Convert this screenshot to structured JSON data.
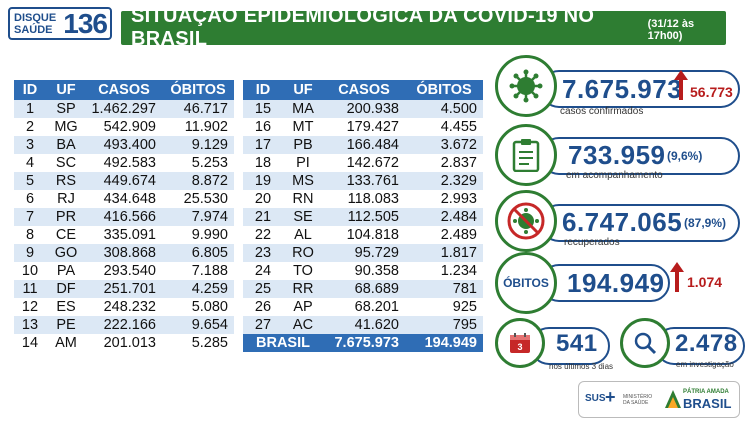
{
  "logo": {
    "line1": "DISQUE",
    "line2": "SAÚDE",
    "number": "136"
  },
  "title": "SITUAÇÃO EPIDEMIOLÓGICA DA COVID-19 NO BRASIL",
  "date": "(31/12 às 17h00)",
  "table_headers": [
    "ID",
    "UF",
    "CASOS",
    "ÓBITOS"
  ],
  "table_left": [
    {
      "id": "1",
      "uf": "SP",
      "casos": "1.462.297",
      "obitos": "46.717"
    },
    {
      "id": "2",
      "uf": "MG",
      "casos": "542.909",
      "obitos": "11.902"
    },
    {
      "id": "3",
      "uf": "BA",
      "casos": "493.400",
      "obitos": "9.129"
    },
    {
      "id": "4",
      "uf": "SC",
      "casos": "492.583",
      "obitos": "5.253"
    },
    {
      "id": "5",
      "uf": "RS",
      "casos": "449.674",
      "obitos": "8.872"
    },
    {
      "id": "6",
      "uf": "RJ",
      "casos": "434.648",
      "obitos": "25.530"
    },
    {
      "id": "7",
      "uf": "PR",
      "casos": "416.566",
      "obitos": "7.974"
    },
    {
      "id": "8",
      "uf": "CE",
      "casos": "335.091",
      "obitos": "9.990"
    },
    {
      "id": "9",
      "uf": "GO",
      "casos": "308.868",
      "obitos": "6.805"
    },
    {
      "id": "10",
      "uf": "PA",
      "casos": "293.540",
      "obitos": "7.188"
    },
    {
      "id": "11",
      "uf": "DF",
      "casos": "251.701",
      "obitos": "4.259"
    },
    {
      "id": "12",
      "uf": "ES",
      "casos": "248.232",
      "obitos": "5.080"
    },
    {
      "id": "13",
      "uf": "PE",
      "casos": "222.166",
      "obitos": "9.654"
    },
    {
      "id": "14",
      "uf": "AM",
      "casos": "201.013",
      "obitos": "5.285"
    }
  ],
  "table_right": [
    {
      "id": "15",
      "uf": "MA",
      "casos": "200.938",
      "obitos": "4.500"
    },
    {
      "id": "16",
      "uf": "MT",
      "casos": "179.427",
      "obitos": "4.455"
    },
    {
      "id": "17",
      "uf": "PB",
      "casos": "166.484",
      "obitos": "3.672"
    },
    {
      "id": "18",
      "uf": "PI",
      "casos": "142.672",
      "obitos": "2.837"
    },
    {
      "id": "19",
      "uf": "MS",
      "casos": "133.761",
      "obitos": "2.329"
    },
    {
      "id": "20",
      "uf": "RN",
      "casos": "118.083",
      "obitos": "2.993"
    },
    {
      "id": "21",
      "uf": "SE",
      "casos": "112.505",
      "obitos": "2.484"
    },
    {
      "id": "22",
      "uf": "AL",
      "casos": "104.818",
      "obitos": "2.489"
    },
    {
      "id": "23",
      "uf": "RO",
      "casos": "95.729",
      "obitos": "1.817"
    },
    {
      "id": "24",
      "uf": "TO",
      "casos": "90.358",
      "obitos": "1.234"
    },
    {
      "id": "25",
      "uf": "RR",
      "casos": "68.689",
      "obitos": "781"
    },
    {
      "id": "26",
      "uf": "AP",
      "casos": "68.201",
      "obitos": "925"
    },
    {
      "id": "27",
      "uf": "AC",
      "casos": "41.620",
      "obitos": "795"
    }
  ],
  "total": {
    "label": "BRASIL",
    "casos": "7.675.973",
    "obitos": "194.949"
  },
  "stats": {
    "confirmados": {
      "value": "7.675.973",
      "delta": "56.773",
      "caption": "casos confirmados"
    },
    "acompanhamento": {
      "value": "733.959",
      "pct": "(9,6%)",
      "caption": "em acompanhamento"
    },
    "recuperados": {
      "value": "6.747.065",
      "pct": "(87,9%)",
      "caption": "recuperados"
    },
    "obitos": {
      "label": "ÓBITOS",
      "value": "194.949",
      "delta": "1.074"
    },
    "ultimos": {
      "value": "541",
      "caption": "nos últimos 3 dias",
      "icon_number": "3"
    },
    "investigacao": {
      "value": "2.478",
      "caption": "em investigação"
    }
  },
  "footer": {
    "sus": "SUS",
    "ministerio": "MINISTÉRIO DA SAÚDE",
    "patria": "PÁTRIA AMADA",
    "brasil": "BRASIL"
  },
  "colors": {
    "green": "#2e7d32",
    "blue": "#1f4e8c",
    "header_blue": "#2f6db5",
    "alt_row": "#dce8f5",
    "red": "#b71c1c"
  },
  "icons": [
    "virus-icon",
    "clipboard-icon",
    "no-virus-icon",
    "calendar-icon",
    "magnifier-icon",
    "arrow-up-icon"
  ]
}
